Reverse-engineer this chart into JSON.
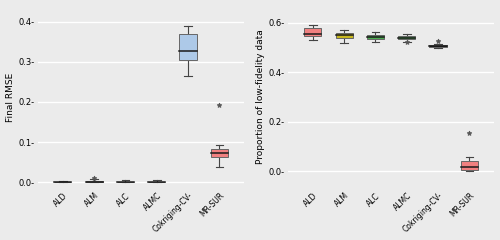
{
  "categories": [
    "ALD",
    "ALM",
    "ALC",
    "ALMC",
    "Cokriging-CV-",
    "MR-SUR"
  ],
  "left_ylabel": "Final RMSE",
  "right_ylabel": "Proportion of low-fidelity data",
  "left_ylim": [
    -0.015,
    0.44
  ],
  "right_ylim": [
    -0.07,
    0.67
  ],
  "left_yticks": [
    0.0,
    0.1,
    0.2,
    0.3,
    0.4
  ],
  "right_yticks": [
    0.0,
    0.2,
    0.4,
    0.6
  ],
  "background_color": "#ebebeb",
  "grid_color": "#ffffff",
  "median_color": "#1a1a1a",
  "whisker_color": "#444444",
  "left_boxes": [
    {
      "med": 0.0005,
      "q1": 0.0002,
      "q3": 0.001,
      "whislo": 0.0,
      "whishi": 0.003,
      "fliers": [],
      "color": "#f08080"
    },
    {
      "med": 0.0015,
      "q1": 0.001,
      "q3": 0.003,
      "whislo": 0.0,
      "whishi": 0.008,
      "fliers": [
        0.011
      ],
      "color": "#f08080"
    },
    {
      "med": 0.001,
      "q1": 0.0005,
      "q3": 0.002,
      "whislo": 0.0,
      "whishi": 0.007,
      "fliers": [],
      "color": "#f08080"
    },
    {
      "med": 0.001,
      "q1": 0.0004,
      "q3": 0.0018,
      "whislo": 0.0,
      "whishi": 0.006,
      "fliers": [],
      "color": "#f08080"
    },
    {
      "med": 0.328,
      "q1": 0.305,
      "q3": 0.368,
      "whislo": 0.265,
      "whishi": 0.39,
      "fliers": [],
      "color": "#adc9e8"
    },
    {
      "med": 0.074,
      "q1": 0.063,
      "q3": 0.084,
      "whislo": 0.038,
      "whishi": 0.092,
      "fliers": [
        0.193
      ],
      "color": "#f08080"
    }
  ],
  "right_boxes": [
    {
      "med": 0.556,
      "q1": 0.546,
      "q3": 0.578,
      "whislo": 0.532,
      "whishi": 0.592,
      "fliers": [],
      "color": "#f08080"
    },
    {
      "med": 0.549,
      "q1": 0.537,
      "q3": 0.558,
      "whislo": 0.517,
      "whishi": 0.57,
      "fliers": [],
      "color": "#c8b820"
    },
    {
      "med": 0.544,
      "q1": 0.536,
      "q3": 0.552,
      "whislo": 0.524,
      "whishi": 0.562,
      "fliers": [],
      "color": "#4caf50"
    },
    {
      "med": 0.54,
      "q1": 0.535,
      "q3": 0.546,
      "whislo": 0.522,
      "whishi": 0.553,
      "fliers": [
        0.524
      ],
      "color": "#4caf50"
    },
    {
      "med": 0.507,
      "q1": 0.503,
      "q3": 0.511,
      "whislo": 0.498,
      "whishi": 0.516,
      "fliers": [
        0.528
      ],
      "color": "#1a1a1a"
    },
    {
      "med": 0.018,
      "q1": 0.006,
      "q3": 0.042,
      "whislo": 0.0,
      "whishi": 0.058,
      "fliers": [
        0.153
      ],
      "color": "#f08080"
    }
  ]
}
